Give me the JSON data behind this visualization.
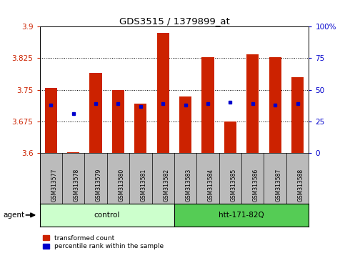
{
  "title": "GDS3515 / 1379899_at",
  "samples": [
    "GSM313577",
    "GSM313578",
    "GSM313579",
    "GSM313580",
    "GSM313581",
    "GSM313582",
    "GSM313583",
    "GSM313584",
    "GSM313585",
    "GSM313586",
    "GSM313587",
    "GSM313588"
  ],
  "red_values": [
    3.755,
    3.602,
    3.79,
    3.75,
    3.718,
    3.885,
    3.735,
    3.828,
    3.675,
    3.835,
    3.828,
    3.78
  ],
  "blue_values": [
    3.714,
    3.693,
    3.717,
    3.717,
    3.71,
    3.717,
    3.714,
    3.717,
    3.72,
    3.717,
    3.714,
    3.717
  ],
  "ymin": 3.6,
  "ymax": 3.9,
  "yticks": [
    3.6,
    3.675,
    3.75,
    3.825,
    3.9
  ],
  "ytick_labels": [
    "3.6",
    "3.675",
    "3.75",
    "3.825",
    "3.9"
  ],
  "y2ticks": [
    0,
    25,
    50,
    75,
    100
  ],
  "y2tick_labels": [
    "0",
    "25",
    "50",
    "75",
    "100%"
  ],
  "groups": [
    {
      "label": "control",
      "start": 0,
      "end": 6,
      "color": "#ccffcc"
    },
    {
      "label": "htt-171-82Q",
      "start": 6,
      "end": 12,
      "color": "#55cc55"
    }
  ],
  "bar_color": "#cc2200",
  "dot_color": "#0000cc",
  "base": 3.6,
  "bar_width": 0.55,
  "ytick_color": "#cc2200",
  "y2tick_color": "#0000cc",
  "background_plot": "#ffffff",
  "background_xtick": "#bbbbbb",
  "grid_yticks": [
    3.675,
    3.75,
    3.825
  ]
}
